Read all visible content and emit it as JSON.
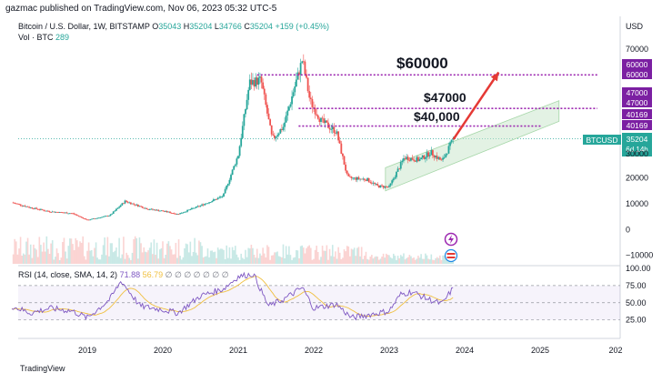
{
  "header": {
    "published": "gazmac published on TradingView.com, Nov 06, 2023 05:32 UTC-5",
    "symbol": "Bitcoin / U.S. Dollar, 1W, BITSTAMP",
    "o_label": "O",
    "o_value": "35043",
    "h_label": "H",
    "h_value": "35204",
    "l_label": "L",
    "l_value": "34766",
    "c_label": "C",
    "c_value": "35204",
    "change": "+159 (+0.45%)",
    "vol_label": "Vol · BTC",
    "vol_value": "289",
    "currency": "USD"
  },
  "rsi": {
    "label": "RSI (14, close, SMA, 14, 2)",
    "value": "71.88",
    "sma_value": "56.79",
    "placeholders": "∅ ∅ ∅ ∅ ∅ ∅ ∅",
    "levels": [
      75,
      50,
      25
    ],
    "level_labels": [
      "100.00",
      "75.00",
      "50.00",
      "25.00"
    ]
  },
  "annotations": {
    "t60000": "$60000",
    "t47000": "$47000",
    "t40000": "$40,000"
  },
  "price_badges": {
    "b60000a": "60000",
    "b60000b": "60000",
    "b47000a": "47000",
    "b47000b": "47000",
    "b40169a": "40169",
    "b40169b": "40169",
    "btcusd": "BTCUSD",
    "last": "35204",
    "countdown": "6d 14h",
    "hidden": "30000"
  },
  "colors": {
    "up": "#26a69a",
    "down": "#ef5350",
    "purple": "#9c27b0",
    "badge_purple": "#7b1fa2",
    "rsi_line": "#7e57c2",
    "rsi_sma": "#f0c040",
    "arrow": "#e53935",
    "channel": "#c8e6c9"
  },
  "icons": [
    "lightning-icon",
    "flag-icon"
  ],
  "footer": {
    "text": "TradingView"
  },
  "chart_data": {
    "type": "candlestick",
    "interval": "1W",
    "price_axis": {
      "ticks": [
        "70000",
        "60000",
        "50000",
        "40000",
        "30000",
        "20000",
        "10000",
        "0",
        "−10000"
      ],
      "values": [
        70000,
        60000,
        50000,
        40000,
        30000,
        20000,
        10000,
        0,
        -10000
      ],
      "range": [
        -14000,
        76000
      ]
    },
    "time_axis": {
      "labels": [
        "2019",
        "2020",
        "2021",
        "2022",
        "2023",
        "2024",
        "2025",
        "202"
      ],
      "years": [
        2019,
        2020,
        2021,
        2022,
        2023,
        2024,
        2025,
        2026
      ]
    },
    "price_path": [
      [
        2018.0,
        10500
      ],
      [
        2018.25,
        8500
      ],
      [
        2018.5,
        7000
      ],
      [
        2018.8,
        6300
      ],
      [
        2019.0,
        3700
      ],
      [
        2019.3,
        5500
      ],
      [
        2019.5,
        11000
      ],
      [
        2019.8,
        8000
      ],
      [
        2020.0,
        7200
      ],
      [
        2020.2,
        6000
      ],
      [
        2020.5,
        9300
      ],
      [
        2020.8,
        13000
      ],
      [
        2021.0,
        29000
      ],
      [
        2021.15,
        57000
      ],
      [
        2021.3,
        58000
      ],
      [
        2021.45,
        35000
      ],
      [
        2021.6,
        40000
      ],
      [
        2021.85,
        66000
      ],
      [
        2021.95,
        50000
      ],
      [
        2022.1,
        42000
      ],
      [
        2022.3,
        38000
      ],
      [
        2022.45,
        20000
      ],
      [
        2022.7,
        19500
      ],
      [
        2022.85,
        16800
      ],
      [
        2023.0,
        16500
      ],
      [
        2023.2,
        28000
      ],
      [
        2023.4,
        27000
      ],
      [
        2023.55,
        30000
      ],
      [
        2023.7,
        26500
      ],
      [
        2023.85,
        35204
      ]
    ],
    "levels": [
      {
        "value": 60000,
        "label": "$60000"
      },
      {
        "value": 47000,
        "label": "$47000"
      },
      {
        "value": 40169,
        "label": "$40,000"
      }
    ],
    "last_price": 35204,
    "channel": {
      "upper": [
        [
          2022.95,
          24000
        ],
        [
          2025.25,
          50000
        ]
      ],
      "lower": [
        [
          2022.95,
          15000
        ],
        [
          2025.25,
          42000
        ]
      ]
    },
    "arrow": {
      "from": [
        2023.85,
        35000
      ],
      "to": [
        2024.45,
        61000
      ]
    },
    "rsi_path": [
      [
        2018.0,
        45
      ],
      [
        2018.25,
        35
      ],
      [
        2018.5,
        42
      ],
      [
        2018.8,
        38
      ],
      [
        2019.0,
        28
      ],
      [
        2019.3,
        55
      ],
      [
        2019.45,
        82
      ],
      [
        2019.7,
        45
      ],
      [
        2020.0,
        40
      ],
      [
        2020.2,
        35
      ],
      [
        2020.5,
        60
      ],
      [
        2020.8,
        70
      ],
      [
        2021.0,
        88
      ],
      [
        2021.2,
        92
      ],
      [
        2021.4,
        45
      ],
      [
        2021.6,
        55
      ],
      [
        2021.85,
        72
      ],
      [
        2022.0,
        42
      ],
      [
        2022.3,
        48
      ],
      [
        2022.5,
        28
      ],
      [
        2022.8,
        34
      ],
      [
        2023.0,
        38
      ],
      [
        2023.15,
        62
      ],
      [
        2023.3,
        66
      ],
      [
        2023.5,
        56
      ],
      [
        2023.7,
        48
      ],
      [
        2023.85,
        71.88
      ]
    ]
  }
}
